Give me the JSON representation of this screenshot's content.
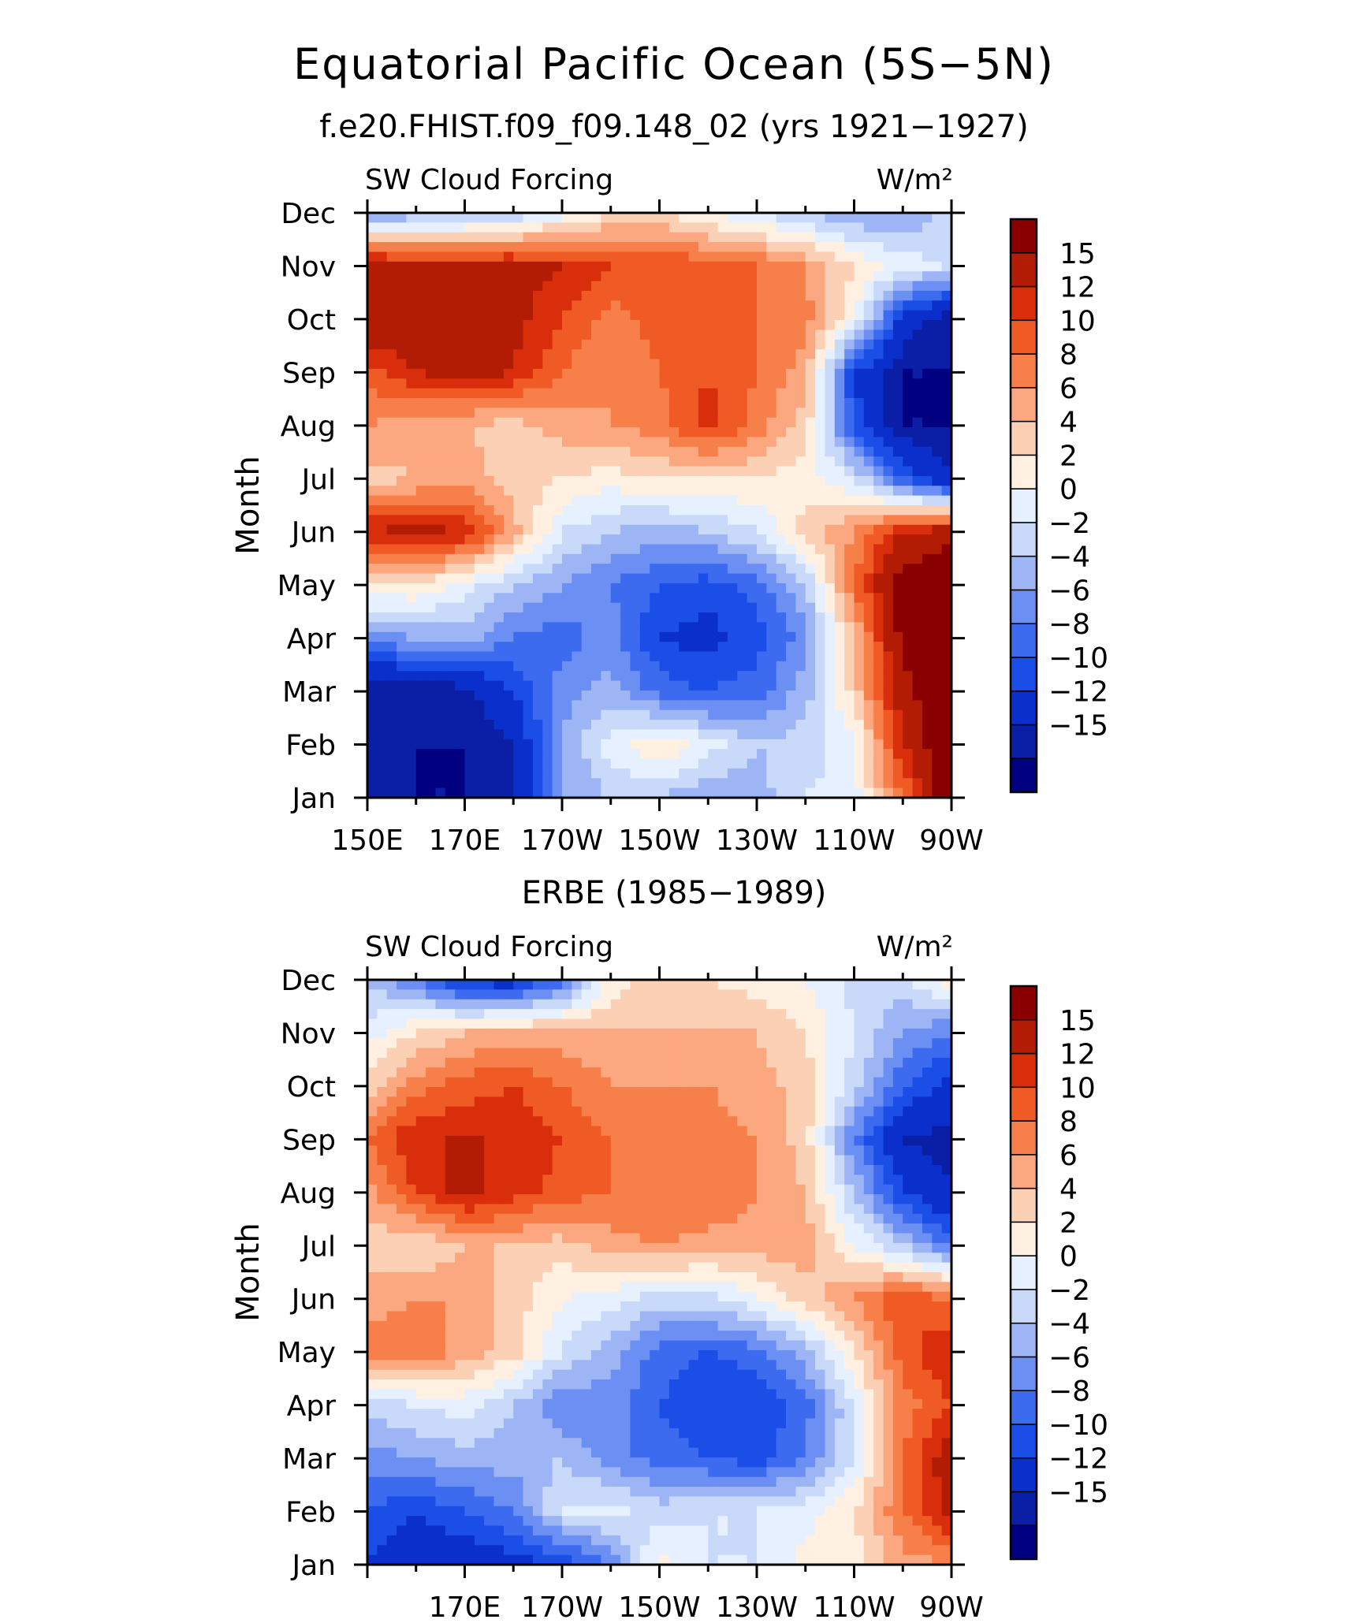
{
  "header": {
    "title": "Equatorial Pacific Ocean (5S−5N)",
    "subtitle": "f.e20.FHIST.f09_f09.148_02 (yrs 1921−1927)",
    "panel2_title": "ERBE (1985−1989)"
  },
  "chart_data": [
    {
      "type": "heatmap",
      "left_label": "SW Cloud Forcing",
      "right_label": "W/m²",
      "ylabel": "Month",
      "xlabel": "",
      "x_tick_labels": [
        "150E",
        "170E",
        "170W",
        "150W",
        "130W",
        "110W",
        "90W"
      ],
      "y_tick_labels": [
        "Jan",
        "Feb",
        "Mar",
        "Apr",
        "May",
        "Jun",
        "Jul",
        "Aug",
        "Sep",
        "Oct",
        "Nov",
        "Dec"
      ],
      "xlim": [
        "150E",
        "90W"
      ],
      "ylim": [
        "Jan",
        "Dec"
      ],
      "x": [
        "150E",
        "160E",
        "170E",
        "180",
        "170W",
        "160W",
        "150W",
        "140W",
        "130W",
        "120W",
        "110W",
        "100W",
        "90W"
      ],
      "y": [
        "Jan",
        "Feb",
        "Mar",
        "Apr",
        "May",
        "Jun",
        "Jul",
        "Aug",
        "Sep",
        "Oct",
        "Nov",
        "Dec"
      ],
      "z": [
        [
          -17,
          -17,
          -17,
          -15,
          -6,
          -4,
          -4,
          -6,
          -5,
          -2,
          -1,
          8,
          18
        ],
        [
          -15,
          -17,
          -17,
          -15,
          -6,
          -1,
          2,
          -1,
          -4,
          -3,
          -1,
          12,
          18
        ],
        [
          -17,
          -17,
          -16,
          -12,
          -7,
          -5,
          -9,
          -10,
          -9,
          -5,
          3,
          14,
          18
        ],
        [
          -7,
          -6,
          -5,
          -8,
          -9,
          -7,
          -12,
          -13,
          -11,
          -7,
          4,
          16,
          18
        ],
        [
          2,
          2,
          -1,
          -4,
          -6,
          -8,
          -10,
          -11,
          -9,
          -4,
          8,
          17,
          18
        ],
        [
          12,
          13,
          12,
          5,
          -2,
          -4,
          -5,
          -4,
          -2,
          3,
          6,
          12,
          14
        ],
        [
          3,
          4,
          5,
          3,
          2,
          1,
          2,
          2,
          2,
          1,
          -2,
          -10,
          -15
        ],
        [
          6,
          5,
          4,
          3,
          5,
          6,
          7,
          11,
          7,
          3,
          -11,
          -17,
          -17
        ],
        [
          9,
          12,
          13,
          12,
          8,
          6,
          8,
          10,
          8,
          5,
          -12,
          -17,
          -17
        ],
        [
          15,
          14,
          13,
          13,
          10,
          7,
          9,
          9,
          8,
          7,
          0,
          -13,
          -17
        ],
        [
          14,
          13,
          13,
          13,
          12,
          10,
          10,
          9,
          8,
          6,
          2,
          -1,
          -2
        ],
        [
          -8,
          -5,
          -5,
          -4,
          -1,
          2,
          2,
          0,
          -2,
          -4,
          -6,
          -6,
          -3
        ]
      ],
      "colorbar": {
        "tick_labels": [
          "15",
          "12",
          "10",
          "8",
          "6",
          "4",
          "2",
          "0",
          "−2",
          "−4",
          "−6",
          "−8",
          "−10",
          "−12",
          "−15"
        ],
        "levels": [
          -17,
          -15,
          -12,
          -10,
          -8,
          -6,
          -4,
          -2,
          0,
          2,
          4,
          6,
          8,
          10,
          12,
          15
        ],
        "colors": [
          "#000080",
          "#0a1fa6",
          "#0b2fcb",
          "#1a4ee6",
          "#3d6bf0",
          "#6b8ff2",
          "#9db5f5",
          "#c9d9fa",
          "#e6f0ff",
          "#fff0e1",
          "#fcd0b4",
          "#fba77f",
          "#f77f4a",
          "#f05a24",
          "#d92e0b",
          "#b31c04",
          "#8a0000"
        ]
      }
    },
    {
      "type": "heatmap",
      "left_label": "SW Cloud Forcing",
      "right_label": "W/m²",
      "ylabel": "Month",
      "xlabel": "",
      "x_tick_labels": [
        "170E",
        "170W",
        "150W",
        "130W",
        "110W",
        "90W"
      ],
      "y_tick_labels": [
        "Jan",
        "Feb",
        "Mar",
        "Apr",
        "May",
        "Jun",
        "Jul",
        "Aug",
        "Sep",
        "Oct",
        "Nov",
        "Dec"
      ],
      "xlim": [
        "150E",
        "90W"
      ],
      "ylim": [
        "Jan",
        "Dec"
      ],
      "x": [
        "150E",
        "160E",
        "170E",
        "180",
        "170W",
        "160W",
        "150W",
        "140W",
        "130W",
        "120W",
        "110W",
        "100W",
        "90W"
      ],
      "y": [
        "Jan",
        "Feb",
        "Mar",
        "Apr",
        "May",
        "Jun",
        "Jul",
        "Aug",
        "Sep",
        "Oct",
        "Nov",
        "Dec"
      ],
      "z": [
        [
          -12,
          -14,
          -14,
          -13,
          -12,
          -8,
          1,
          -2,
          -2,
          1,
          1,
          5,
          6
        ],
        [
          -10,
          -12,
          -10,
          -8,
          -2,
          -1,
          -3,
          -2,
          -2,
          -1,
          2,
          8,
          13
        ],
        [
          -7,
          -6,
          -5,
          -5,
          -4,
          -7,
          -9,
          -10,
          -11,
          -8,
          -2,
          8,
          14
        ],
        [
          -3,
          -2,
          -1,
          -4,
          -8,
          -7,
          -10,
          -12,
          -12,
          -9,
          -2,
          7,
          10
        ],
        [
          7,
          8,
          5,
          3,
          -2,
          -5,
          -9,
          -10,
          -9,
          -5,
          2,
          9,
          12
        ],
        [
          5,
          6,
          6,
          3,
          0,
          -1,
          -3,
          -3,
          0,
          3,
          6,
          10,
          8
        ],
        [
          3,
          2,
          4,
          4,
          3,
          5,
          6,
          5,
          5,
          5,
          0,
          -4,
          -9
        ],
        [
          5,
          10,
          13,
          11,
          9,
          8,
          8,
          8,
          6,
          4,
          -4,
          -12,
          -15
        ],
        [
          8,
          12,
          12,
          12,
          10,
          8,
          7,
          7,
          6,
          3,
          -8,
          -15,
          -16
        ],
        [
          3,
          7,
          9,
          10,
          8,
          6,
          6,
          6,
          5,
          3,
          -3,
          -10,
          -13
        ],
        [
          -1,
          2,
          4,
          5,
          5,
          4,
          4,
          4,
          4,
          2,
          -2,
          -6,
          -8
        ],
        [
          -4,
          -8,
          -13,
          -14,
          -9,
          1,
          3,
          2,
          1,
          0,
          -3,
          -3,
          2
        ]
      ],
      "colorbar": {
        "tick_labels": [
          "15",
          "12",
          "10",
          "8",
          "6",
          "4",
          "2",
          "0",
          "−2",
          "−4",
          "−6",
          "−8",
          "−10",
          "−12",
          "−15"
        ],
        "levels": [
          -17,
          -15,
          -12,
          -10,
          -8,
          -6,
          -4,
          -2,
          0,
          2,
          4,
          6,
          8,
          10,
          12,
          15
        ],
        "colors": [
          "#000080",
          "#0a1fa6",
          "#0b2fcb",
          "#1a4ee6",
          "#3d6bf0",
          "#6b8ff2",
          "#9db5f5",
          "#c9d9fa",
          "#e6f0ff",
          "#fff0e1",
          "#fcd0b4",
          "#fba77f",
          "#f77f4a",
          "#f05a24",
          "#d92e0b",
          "#b31c04",
          "#8a0000"
        ]
      }
    }
  ]
}
